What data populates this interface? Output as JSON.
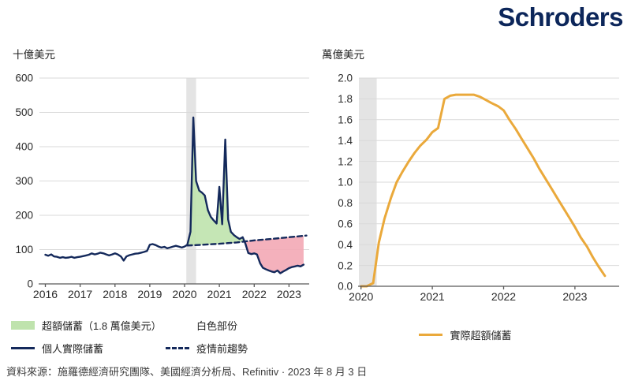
{
  "brand": {
    "logo_text": "Schroders",
    "logo_color": "#0c265a"
  },
  "footer": {
    "source_text": "資料來源：施羅德經濟研究團隊、美國經濟分析局、Refinitiv · 2023 年 8 月 3 日"
  },
  "colors": {
    "navy": "#14295b",
    "green_fill": "#bfe3ad",
    "pink_fill": "#f3a9b5",
    "orange": "#EAA93B",
    "grid": "#d9d9d9",
    "axis": "#595959",
    "recession_band": "#e4e4e4"
  },
  "legends": {
    "left": [
      {
        "swatch": "fill",
        "icon": "green-area-swatch",
        "color": "#bfe3ad",
        "label": "超額儲蓄（1.8 萬億美元）"
      },
      {
        "swatch": "fill",
        "icon": "white-area-swatch",
        "color": "#ffffff",
        "label": "白色部份"
      },
      {
        "swatch": "line",
        "icon": "navy-line-swatch",
        "color": "#14295b",
        "label": "個人實際儲蓄"
      },
      {
        "swatch": "dash",
        "icon": "dashed-line-swatch",
        "color": "#14295b",
        "label": "疫情前趨勢"
      }
    ],
    "right": [
      {
        "swatch": "line",
        "icon": "orange-line-swatch",
        "color": "#EAA93B",
        "label": "實際超額儲蓄"
      }
    ]
  },
  "chart_data": [
    {
      "type": "line",
      "ylabel": "十億美元",
      "xlim": [
        2015.83,
        2023.58
      ],
      "ylim": [
        0,
        600
      ],
      "yticks": [
        [
          0,
          "0"
        ],
        [
          100,
          "100"
        ],
        [
          200,
          "200"
        ],
        [
          300,
          "300"
        ],
        [
          400,
          "400"
        ],
        [
          500,
          "500"
        ],
        [
          600,
          "600"
        ]
      ],
      "xticks": [
        [
          2016,
          "2016"
        ],
        [
          2017,
          "2017"
        ],
        [
          2018,
          "2018"
        ],
        [
          2019,
          "2019"
        ],
        [
          2020,
          "2020"
        ],
        [
          2021,
          "2021"
        ],
        [
          2022,
          "2022"
        ],
        [
          2023,
          "2023"
        ]
      ],
      "recession_band": [
        2020.05,
        2020.33
      ],
      "series": [
        {
          "key": "personal-actual-savings-line",
          "name": "個人實際儲蓄",
          "color": "#14295b",
          "width": 2.4,
          "x": [
            2016.0,
            2016.08,
            2016.17,
            2016.25,
            2016.33,
            2016.42,
            2016.5,
            2016.58,
            2016.67,
            2016.75,
            2016.83,
            2016.92,
            2017.0,
            2017.08,
            2017.17,
            2017.25,
            2017.33,
            2017.42,
            2017.5,
            2017.58,
            2017.67,
            2017.75,
            2017.83,
            2017.92,
            2018.0,
            2018.08,
            2018.17,
            2018.25,
            2018.33,
            2018.42,
            2018.5,
            2018.58,
            2018.67,
            2018.75,
            2018.83,
            2018.92,
            2019.0,
            2019.08,
            2019.17,
            2019.25,
            2019.33,
            2019.42,
            2019.5,
            2019.58,
            2019.67,
            2019.75,
            2019.83,
            2019.92,
            2020.0,
            2020.08,
            2020.17,
            2020.25,
            2020.33,
            2020.42,
            2020.5,
            2020.58,
            2020.67,
            2020.75,
            2020.83,
            2020.92,
            2021.0,
            2021.08,
            2021.17,
            2021.25,
            2021.33,
            2021.42,
            2021.5,
            2021.58,
            2021.67,
            2021.75,
            2021.83,
            2021.92,
            2022.0,
            2022.08,
            2022.17,
            2022.25,
            2022.33,
            2022.42,
            2022.5,
            2022.58,
            2022.67,
            2022.75,
            2022.83,
            2022.92,
            2023.0,
            2023.08,
            2023.17,
            2023.25,
            2023.33,
            2023.42
          ],
          "y": [
            85,
            82,
            86,
            80,
            79,
            76,
            78,
            76,
            77,
            79,
            76,
            78,
            79,
            81,
            83,
            85,
            89,
            86,
            88,
            91,
            89,
            86,
            83,
            86,
            89,
            86,
            80,
            68,
            80,
            84,
            86,
            88,
            89,
            91,
            93,
            96,
            114,
            116,
            113,
            109,
            106,
            108,
            104,
            106,
            109,
            111,
            109,
            106,
            109,
            114,
            152,
            485,
            300,
            272,
            266,
            258,
            215,
            196,
            186,
            176,
            283,
            174,
            421,
            188,
            152,
            142,
            136,
            131,
            136,
            117,
            90,
            87,
            89,
            86,
            60,
            47,
            43,
            39,
            36,
            34,
            39,
            31,
            36,
            41,
            46,
            49,
            51,
            53,
            51,
            56
          ]
        },
        {
          "key": "pre-pandemic-trend-line",
          "name": "疫情前趨勢",
          "color": "#14295b",
          "width": 2.4,
          "dash": "6 4",
          "x": [
            2020.08,
            2020.5,
            2021.0,
            2021.5,
            2022.0,
            2022.5,
            2023.0,
            2023.5
          ],
          "y": [
            112,
            114,
            117,
            121,
            127,
            131,
            136,
            141
          ]
        }
      ],
      "fills": [
        {
          "key": "excess-savings-area",
          "between": [
            0,
            1
          ],
          "range": [
            2020.11,
            2021.71
          ],
          "color": "#bfe3ad"
        },
        {
          "key": "savings-shortfall-area",
          "between": [
            0,
            1
          ],
          "range": [
            2021.71,
            2023.42
          ],
          "color": "#f3a9b5"
        }
      ]
    },
    {
      "type": "line",
      "ylabel": "萬億美元",
      "xlim": [
        2019.97,
        2023.62
      ],
      "ylim": [
        0,
        2.0
      ],
      "yticks": [
        [
          0,
          "0.0"
        ],
        [
          0.2,
          "0.2"
        ],
        [
          0.4,
          "0.4"
        ],
        [
          0.6,
          "0.6"
        ],
        [
          0.8,
          "0.8"
        ],
        [
          1.0,
          "1.0"
        ],
        [
          1.2,
          "1.2"
        ],
        [
          1.4,
          "1.4"
        ],
        [
          1.6,
          "1.6"
        ],
        [
          1.8,
          "1.8"
        ],
        [
          2.0,
          "2.0"
        ]
      ],
      "xticks": [
        [
          2020,
          "2020"
        ],
        [
          2021,
          "2021"
        ],
        [
          2022,
          "2022"
        ],
        [
          2023,
          "2023"
        ]
      ],
      "recession_band": [
        2019.97,
        2020.22
      ],
      "series": [
        {
          "key": "actual-excess-savings-line",
          "name": "實際超額儲蓄",
          "color": "#EAA93B",
          "width": 3,
          "x": [
            2020.0,
            2020.08,
            2020.17,
            2020.25,
            2020.33,
            2020.42,
            2020.5,
            2020.58,
            2020.67,
            2020.75,
            2020.83,
            2020.92,
            2021.0,
            2021.08,
            2021.17,
            2021.25,
            2021.33,
            2021.42,
            2021.5,
            2021.58,
            2021.67,
            2021.75,
            2021.83,
            2021.92,
            2022.0,
            2022.08,
            2022.17,
            2022.25,
            2022.33,
            2022.42,
            2022.5,
            2022.58,
            2022.67,
            2022.75,
            2022.83,
            2022.92,
            2023.0,
            2023.08,
            2023.17,
            2023.25,
            2023.33,
            2023.42
          ],
          "y": [
            0,
            0,
            0.03,
            0.42,
            0.65,
            0.85,
            1.0,
            1.1,
            1.2,
            1.28,
            1.35,
            1.41,
            1.48,
            1.52,
            1.8,
            1.83,
            1.84,
            1.84,
            1.84,
            1.84,
            1.82,
            1.79,
            1.76,
            1.73,
            1.69,
            1.6,
            1.51,
            1.42,
            1.33,
            1.23,
            1.13,
            1.04,
            0.94,
            0.85,
            0.76,
            0.66,
            0.57,
            0.47,
            0.38,
            0.28,
            0.19,
            0.1
          ]
        }
      ],
      "fills": []
    }
  ]
}
